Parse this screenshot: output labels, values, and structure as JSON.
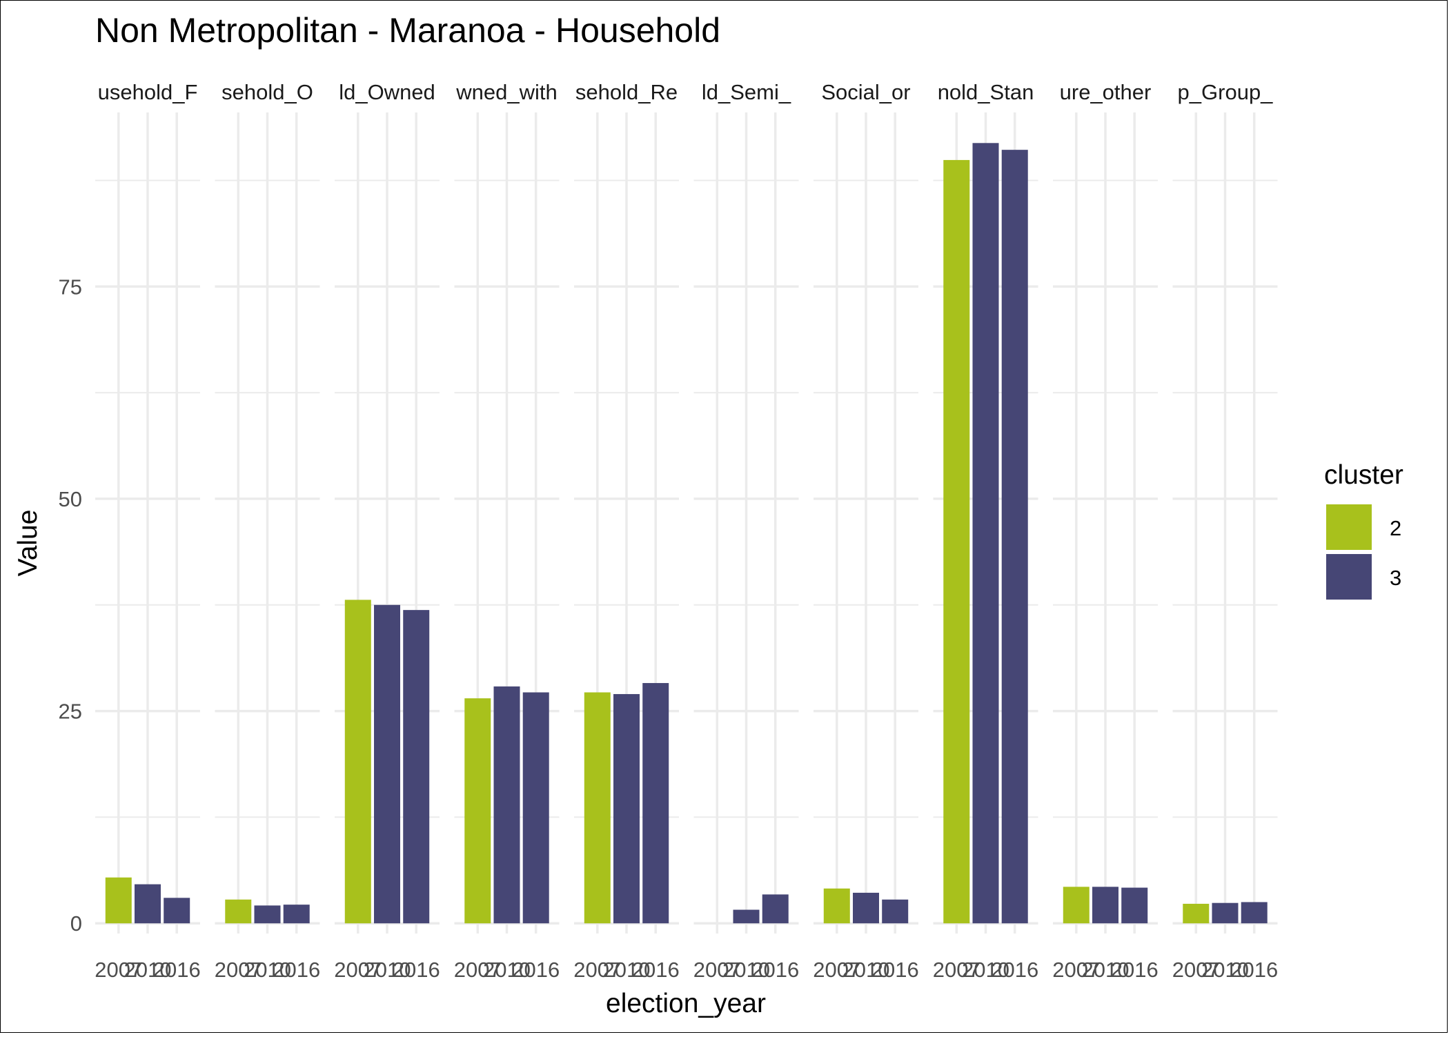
{
  "chart_data": {
    "type": "bar",
    "title": "Non Metropolitan - Maranoa - Household",
    "xlabel": "election_year",
    "ylabel": "Value",
    "ylim": [
      -1.2,
      95.5
    ],
    "yticks": [
      0,
      25,
      50,
      75
    ],
    "grid": true,
    "legend": {
      "title": "cluster",
      "placement": "right",
      "entries": [
        "2",
        "3"
      ]
    },
    "colors": {
      "2": "#A8C11C",
      "3": "#464675",
      "grid": "#EBEBEB",
      "text": "#4D4D4D"
    },
    "facets": [
      {
        "label": "usehold_F",
        "bars": [
          {
            "year": "2007",
            "cluster": "2",
            "value": 5.4
          },
          {
            "year": "2010",
            "cluster": "3",
            "value": 4.6
          },
          {
            "year": "2016",
            "cluster": "3",
            "value": 3.0
          }
        ]
      },
      {
        "label": "sehold_O",
        "bars": [
          {
            "year": "2007",
            "cluster": "2",
            "value": 2.8
          },
          {
            "year": "2010",
            "cluster": "3",
            "value": 2.1
          },
          {
            "year": "2016",
            "cluster": "3",
            "value": 2.2
          }
        ]
      },
      {
        "label": "ld_Owned",
        "bars": [
          {
            "year": "2007",
            "cluster": "2",
            "value": 38.1
          },
          {
            "year": "2010",
            "cluster": "3",
            "value": 37.5
          },
          {
            "year": "2016",
            "cluster": "3",
            "value": 36.9
          }
        ]
      },
      {
        "label": "wned_with",
        "bars": [
          {
            "year": "2007",
            "cluster": "2",
            "value": 26.5
          },
          {
            "year": "2010",
            "cluster": "3",
            "value": 27.9
          },
          {
            "year": "2016",
            "cluster": "3",
            "value": 27.2
          }
        ]
      },
      {
        "label": "sehold_Re",
        "bars": [
          {
            "year": "2007",
            "cluster": "2",
            "value": 27.2
          },
          {
            "year": "2010",
            "cluster": "3",
            "value": 27.0
          },
          {
            "year": "2016",
            "cluster": "3",
            "value": 28.3
          }
        ]
      },
      {
        "label": "ld_Semi_",
        "bars": [
          {
            "year": "2007",
            "cluster": "2",
            "value": 0
          },
          {
            "year": "2010",
            "cluster": "3",
            "value": 1.6
          },
          {
            "year": "2016",
            "cluster": "3",
            "value": 3.4
          }
        ]
      },
      {
        "label": "Social_or",
        "bars": [
          {
            "year": "2007",
            "cluster": "2",
            "value": 4.1
          },
          {
            "year": "2010",
            "cluster": "3",
            "value": 3.6
          },
          {
            "year": "2016",
            "cluster": "3",
            "value": 2.8
          }
        ]
      },
      {
        "label": "nold_Stan",
        "bars": [
          {
            "year": "2007",
            "cluster": "2",
            "value": 89.9
          },
          {
            "year": "2010",
            "cluster": "3",
            "value": 91.9
          },
          {
            "year": "2016",
            "cluster": "3",
            "value": 91.1
          }
        ]
      },
      {
        "label": "ure_other",
        "bars": [
          {
            "year": "2007",
            "cluster": "2",
            "value": 4.3
          },
          {
            "year": "2010",
            "cluster": "3",
            "value": 4.3
          },
          {
            "year": "2016",
            "cluster": "3",
            "value": 4.2
          }
        ]
      },
      {
        "label": "p_Group_",
        "bars": [
          {
            "year": "2007",
            "cluster": "2",
            "value": 2.3
          },
          {
            "year": "2010",
            "cluster": "3",
            "value": 2.4
          },
          {
            "year": "2016",
            "cluster": "3",
            "value": 2.5
          }
        ]
      }
    ]
  }
}
